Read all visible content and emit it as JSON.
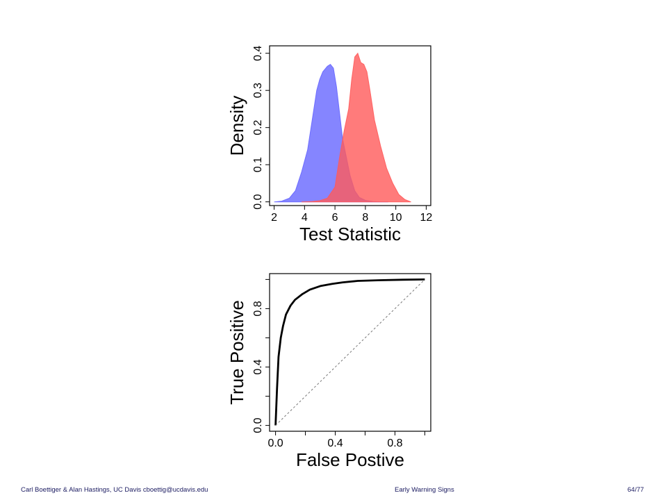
{
  "chart_data": [
    {
      "type": "area",
      "title": "",
      "xlabel": "Test Statistic",
      "ylabel": "Density",
      "xlim": [
        1.7,
        12.3
      ],
      "ylim": [
        -0.01,
        0.42
      ],
      "xticks": [
        2,
        4,
        6,
        8,
        10,
        12
      ],
      "yticks": [
        0.0,
        0.1,
        0.2,
        0.3,
        0.4
      ],
      "xtick_labels": [
        "2",
        "4",
        "6",
        "8",
        "10",
        "12"
      ],
      "ytick_labels": [
        "0.0",
        "0.1",
        "0.2",
        "0.3",
        "0.4"
      ],
      "grid": false,
      "series": [
        {
          "color": "#6666ff",
          "x": [
            2.0,
            2.5,
            3.0,
            3.4,
            3.8,
            4.2,
            4.5,
            4.8,
            5.0,
            5.2,
            5.5,
            5.7,
            5.9,
            6.1,
            6.3,
            6.5,
            6.8,
            7.0,
            7.3,
            7.6,
            8.0,
            8.5,
            9.0,
            9.5
          ],
          "y": [
            0.0,
            0.002,
            0.01,
            0.03,
            0.08,
            0.14,
            0.22,
            0.3,
            0.33,
            0.35,
            0.365,
            0.37,
            0.36,
            0.31,
            0.24,
            0.17,
            0.11,
            0.07,
            0.03,
            0.012,
            0.004,
            0.001,
            0.0,
            0.0
          ]
        },
        {
          "color": "#ff5a5a",
          "x": [
            3.8,
            4.5,
            5.0,
            5.5,
            6.0,
            6.3,
            6.6,
            6.9,
            7.1,
            7.3,
            7.5,
            7.7,
            7.9,
            8.1,
            8.3,
            8.6,
            9.0,
            9.4,
            9.8,
            10.2,
            10.6,
            11.0
          ],
          "y": [
            0.0,
            0.001,
            0.003,
            0.01,
            0.04,
            0.12,
            0.19,
            0.25,
            0.33,
            0.39,
            0.4,
            0.375,
            0.37,
            0.35,
            0.3,
            0.22,
            0.15,
            0.09,
            0.05,
            0.02,
            0.006,
            0.0
          ]
        }
      ]
    },
    {
      "type": "line",
      "title": "",
      "xlabel": "False Postive",
      "ylabel": "True Positive",
      "xlim": [
        -0.04,
        1.04
      ],
      "ylim": [
        -0.04,
        1.04
      ],
      "xticks": [
        0.0,
        0.2,
        0.4,
        0.6,
        0.8,
        1.0
      ],
      "yticks": [
        0.0,
        0.2,
        0.4,
        0.6,
        0.8,
        1.0
      ],
      "xtick_labels": [
        "0.0",
        "",
        "0.4",
        "",
        "0.8",
        ""
      ],
      "ytick_labels": [
        "0.0",
        "",
        "0.4",
        "",
        "0.8",
        ""
      ],
      "grid": false,
      "series": [
        {
          "color": "#000000",
          "x": [
            0.0,
            0.01,
            0.02,
            0.035,
            0.05,
            0.07,
            0.1,
            0.13,
            0.18,
            0.23,
            0.3,
            0.38,
            0.45,
            0.55,
            0.7,
            0.85,
            1.0
          ],
          "y": [
            0.0,
            0.25,
            0.47,
            0.6,
            0.68,
            0.76,
            0.82,
            0.86,
            0.9,
            0.93,
            0.955,
            0.97,
            0.98,
            0.99,
            0.995,
            0.998,
            1.0
          ]
        },
        {
          "color": "#777777",
          "style": "dashed",
          "x": [
            0.0,
            1.0
          ],
          "y": [
            0.0,
            1.0
          ]
        }
      ]
    }
  ],
  "footer": {
    "left": "Carl Boettiger & Alan Hastings, UC Davis cboettig@ucdavis.edu",
    "center": "Early Warning Signs",
    "right": "64/77"
  }
}
